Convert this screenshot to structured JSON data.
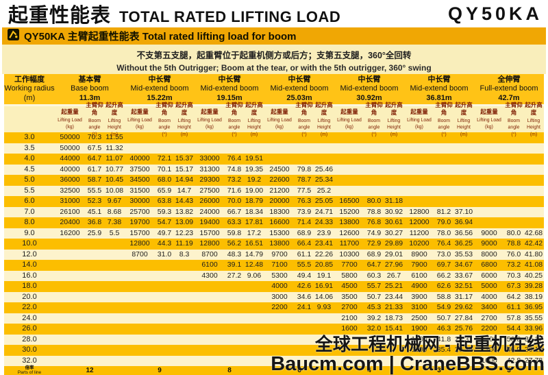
{
  "header": {
    "title_cn": "起重性能表",
    "title_en": "TOTAL RATED LIFTING LOAD",
    "model": "QY50KA"
  },
  "banner": {
    "icon": "crane-icon",
    "label": "QY50KA 主臂起重性能表 Total rated lifting load for boom"
  },
  "note": {
    "line_cn": "不支第五支腿，起重臂位于起重机侧方或后方；支第五支腿，360°全回转",
    "line_en": "Without the 5th Outrigger; Boom at the tear, or with the 5th outrigger, 360° swing"
  },
  "colors": {
    "header_gold": "#ffc316",
    "row_gold": "#fcbe00",
    "row_cream": "#fdf3cc",
    "banner_gold": "#f0a704",
    "note_bg": "#f9eebb",
    "subheader_text": "#7e1d02"
  },
  "table": {
    "radius_header": {
      "cn": "工作幅度",
      "en": "Working radius",
      "unit": "(m)"
    },
    "booms": [
      {
        "cn": "基本臂",
        "en": "Base boom",
        "len": "11.3m"
      },
      {
        "cn": "中长臂",
        "en": "Mid-extend boom",
        "len": "15.22m"
      },
      {
        "cn": "中长臂",
        "en": "Mid-extend boom",
        "len": "19.15m"
      },
      {
        "cn": "中长臂",
        "en": "Mid-extend boom",
        "len": "25.03m"
      },
      {
        "cn": "中长臂",
        "en": "Mid-extend boom",
        "len": "30.92m"
      },
      {
        "cn": "中长臂",
        "en": "Mid-extend boom",
        "len": "36.81m"
      },
      {
        "cn": "全伸臂",
        "en": "Full-extend boom",
        "len": "42.7m"
      }
    ],
    "subcols": [
      {
        "cn": "起重量",
        "en": "Lifting Load",
        "unit": "(kg)"
      },
      {
        "cn": "主臂仰角",
        "en": "Boom angle",
        "unit": "(°)"
      },
      {
        "cn": "起升高度",
        "en": "Lifting Height",
        "unit": "(m)"
      }
    ],
    "rows": [
      {
        "radius": "3.0",
        "cells": [
          [
            "50000",
            "70.3",
            "11.55"
          ],
          null,
          null,
          null,
          null,
          null,
          null
        ]
      },
      {
        "radius": "3.5",
        "cells": [
          [
            "50000",
            "67.5",
            "11.32"
          ],
          null,
          null,
          null,
          null,
          null,
          null
        ]
      },
      {
        "radius": "4.0",
        "cells": [
          [
            "44000",
            "64.7",
            "11.07"
          ],
          [
            "40000",
            "72.1",
            "15.37"
          ],
          [
            "33000",
            "76.4",
            "19.51"
          ],
          null,
          null,
          null,
          null
        ]
      },
      {
        "radius": "4.5",
        "cells": [
          [
            "40000",
            "61.7",
            "10.77"
          ],
          [
            "37500",
            "70.1",
            "15.17"
          ],
          [
            "31300",
            "74.8",
            "19.35"
          ],
          [
            "24500",
            "79.8",
            "25.46"
          ],
          null,
          null,
          null
        ]
      },
      {
        "radius": "5.0",
        "cells": [
          [
            "36000",
            "58.7",
            "10.45"
          ],
          [
            "34500",
            "68.0",
            "14.94"
          ],
          [
            "29300",
            "73.2",
            "19.2"
          ],
          [
            "22600",
            "78.7",
            "25.34"
          ],
          null,
          null,
          null
        ]
      },
      {
        "radius": "5.5",
        "cells": [
          [
            "32500",
            "55.5",
            "10.08"
          ],
          [
            "31500",
            "65.9",
            "14.7"
          ],
          [
            "27500",
            "71.6",
            "19.00"
          ],
          [
            "21200",
            "77.5",
            "25.2"
          ],
          null,
          null,
          null
        ]
      },
      {
        "radius": "6.0",
        "cells": [
          [
            "31000",
            "52.3",
            "9.67"
          ],
          [
            "30000",
            "63.8",
            "14.43"
          ],
          [
            "26000",
            "70.0",
            "18.79"
          ],
          [
            "20000",
            "76.3",
            "25.05"
          ],
          [
            "16500",
            "80.0",
            "31.18"
          ],
          null,
          null
        ]
      },
      {
        "radius": "7.0",
        "cells": [
          [
            "26100",
            "45.1",
            "8.68"
          ],
          [
            "25700",
            "59.3",
            "13.82"
          ],
          [
            "24000",
            "66.7",
            "18.34"
          ],
          [
            "18300",
            "73.9",
            "24.71"
          ],
          [
            "15200",
            "78.8",
            "30.92"
          ],
          [
            "12800",
            "81.2",
            "37.10"
          ],
          null
        ]
      },
      {
        "radius": "8.0",
        "cells": [
          [
            "20400",
            "36.8",
            "7.38"
          ],
          [
            "19700",
            "54.7",
            "13.09"
          ],
          [
            "19400",
            "63.3",
            "17.81"
          ],
          [
            "16600",
            "71.4",
            "24.33"
          ],
          [
            "13800",
            "76.8",
            "30.61"
          ],
          [
            "12000",
            "79.0",
            "36.94"
          ],
          null
        ]
      },
      {
        "radius": "9.0",
        "cells": [
          [
            "16200",
            "25.9",
            "5.5"
          ],
          [
            "15700",
            "49.7",
            "12.23"
          ],
          [
            "15700",
            "59.8",
            "17.2"
          ],
          [
            "15300",
            "68.9",
            "23.9"
          ],
          [
            "12600",
            "74.9",
            "30.27"
          ],
          [
            "11200",
            "78.0",
            "36.56"
          ],
          [
            "9000",
            "80.0",
            "42.68"
          ]
        ]
      },
      {
        "radius": "10.0",
        "cells": [
          null,
          [
            "12800",
            "44.3",
            "11.19"
          ],
          [
            "12800",
            "56.2",
            "16.51"
          ],
          [
            "13800",
            "66.4",
            "23.41"
          ],
          [
            "11700",
            "72.9",
            "29.89"
          ],
          [
            "10200",
            "76.4",
            "36.25"
          ],
          [
            "9000",
            "78.8",
            "42.42"
          ]
        ]
      },
      {
        "radius": "12.0",
        "cells": [
          null,
          [
            "8700",
            "31.0",
            "8.3"
          ],
          [
            "8700",
            "48.3",
            "14.79"
          ],
          [
            "9700",
            "61.1",
            "22.26"
          ],
          [
            "10300",
            "68.9",
            "29.01"
          ],
          [
            "8900",
            "73.0",
            "35.53"
          ],
          [
            "8000",
            "76.0",
            "41.80"
          ]
        ]
      },
      {
        "radius": "14.0",
        "cells": [
          null,
          null,
          [
            "6100",
            "39.1",
            "12.48"
          ],
          [
            "7100",
            "55.5",
            "20.85"
          ],
          [
            "7700",
            "64.7",
            "27.96"
          ],
          [
            "7900",
            "69.7",
            "34.67"
          ],
          [
            "6800",
            "73.2",
            "41.08"
          ]
        ]
      },
      {
        "radius": "16.0",
        "cells": [
          null,
          null,
          [
            "4300",
            "27.2",
            "9.06"
          ],
          [
            "5300",
            "49.4",
            "19.1"
          ],
          [
            "5800",
            "60.3",
            "26.7"
          ],
          [
            "6100",
            "66.2",
            "33.67"
          ],
          [
            "6000",
            "70.3",
            "40.25"
          ]
        ]
      },
      {
        "radius": "18.0",
        "cells": [
          null,
          null,
          null,
          [
            "4000",
            "42.6",
            "16.91"
          ],
          [
            "4500",
            "55.7",
            "25.21"
          ],
          [
            "4900",
            "62.6",
            "32.51"
          ],
          [
            "5000",
            "67.3",
            "39.28"
          ]
        ]
      },
      {
        "radius": "20.0",
        "cells": [
          null,
          null,
          null,
          [
            "3000",
            "34.6",
            "14.06"
          ],
          [
            "3500",
            "50.7",
            "23.44"
          ],
          [
            "3900",
            "58.8",
            "31.17"
          ],
          [
            "4000",
            "64.2",
            "38.19"
          ]
        ]
      },
      {
        "radius": "22.0",
        "cells": [
          null,
          null,
          null,
          [
            "2200",
            "24.1",
            "9.93"
          ],
          [
            "2700",
            "45.3",
            "21.33"
          ],
          [
            "3100",
            "54.9",
            "29.62"
          ],
          [
            "3400",
            "61.1",
            "36.95"
          ]
        ]
      },
      {
        "radius": "24.0",
        "cells": [
          null,
          null,
          null,
          null,
          [
            "2100",
            "39.2",
            "18.73"
          ],
          [
            "2500",
            "50.7",
            "27.84"
          ],
          [
            "2700",
            "57.8",
            "35.55"
          ]
        ]
      },
      {
        "radius": "26.0",
        "cells": [
          null,
          null,
          null,
          null,
          [
            "1600",
            "32.0",
            "15.41"
          ],
          [
            "1900",
            "46.3",
            "25.76"
          ],
          [
            "2200",
            "54.4",
            "33.96"
          ]
        ]
      },
      {
        "radius": "28.0",
        "cells": [
          null,
          null,
          null,
          null,
          null,
          [
            "1500",
            "41.8",
            "23.31"
          ],
          [
            "1700",
            "50.8",
            "32.17"
          ]
        ]
      },
      {
        "radius": "30.0",
        "cells": [
          null,
          null,
          null,
          null,
          null,
          [
            "1100",
            "35.4",
            "20.35"
          ],
          [
            "1300",
            "46.9",
            "30.12"
          ]
        ]
      },
      {
        "radius": "32.0",
        "cells": [
          null,
          null,
          null,
          null,
          null,
          null,
          [
            "1000",
            "42.8",
            "27.78"
          ]
        ]
      }
    ],
    "parts_row": {
      "label_cn": "倍率",
      "label_en": "Parts of line",
      "values": [
        "12",
        "9",
        "8",
        "6",
        "4",
        "3",
        "3"
      ]
    }
  },
  "watermark": {
    "line1": "全球工程机械网 - 起重机在线",
    "line2": "Baucm.com | CraneBBS.com"
  }
}
